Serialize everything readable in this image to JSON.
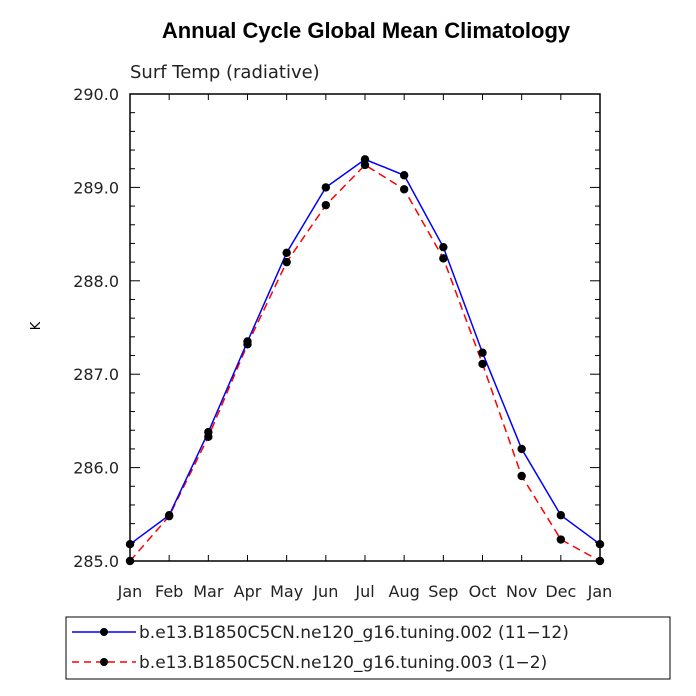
{
  "chart_data": {
    "type": "line",
    "title": "Annual Cycle Global Mean Climatology",
    "subtitle": "Surf Temp (radiative)",
    "ylabel": "K",
    "xlabel": "",
    "categories": [
      "Jan",
      "Feb",
      "Mar",
      "Apr",
      "May",
      "Jun",
      "Jul",
      "Aug",
      "Sep",
      "Oct",
      "Nov",
      "Dec",
      "Jan"
    ],
    "ylim": [
      285.0,
      290.0
    ],
    "yticks": [
      285.0,
      286.0,
      287.0,
      288.0,
      289.0,
      290.0
    ],
    "ytick_labels": [
      "285.0",
      "286.0",
      "287.0",
      "288.0",
      "289.0",
      "290.0"
    ],
    "series": [
      {
        "name": "b.e13.B1850C5CN.ne120_g16.tuning.002 (11−12)",
        "color": "#0000ff",
        "line_style": "solid",
        "values": [
          285.18,
          285.49,
          286.38,
          287.35,
          288.3,
          289.0,
          289.3,
          289.13,
          288.36,
          287.23,
          286.2,
          285.49,
          285.18
        ]
      },
      {
        "name": "b.e13.B1850C5CN.ne120_g16.tuning.003 (1−2)",
        "color": "#ff0000",
        "line_style": "dashed",
        "values": [
          285.0,
          285.48,
          286.33,
          287.32,
          288.2,
          288.81,
          289.24,
          288.98,
          288.24,
          287.11,
          285.91,
          285.23,
          285.0
        ]
      }
    ],
    "legend_position": "bottom"
  }
}
